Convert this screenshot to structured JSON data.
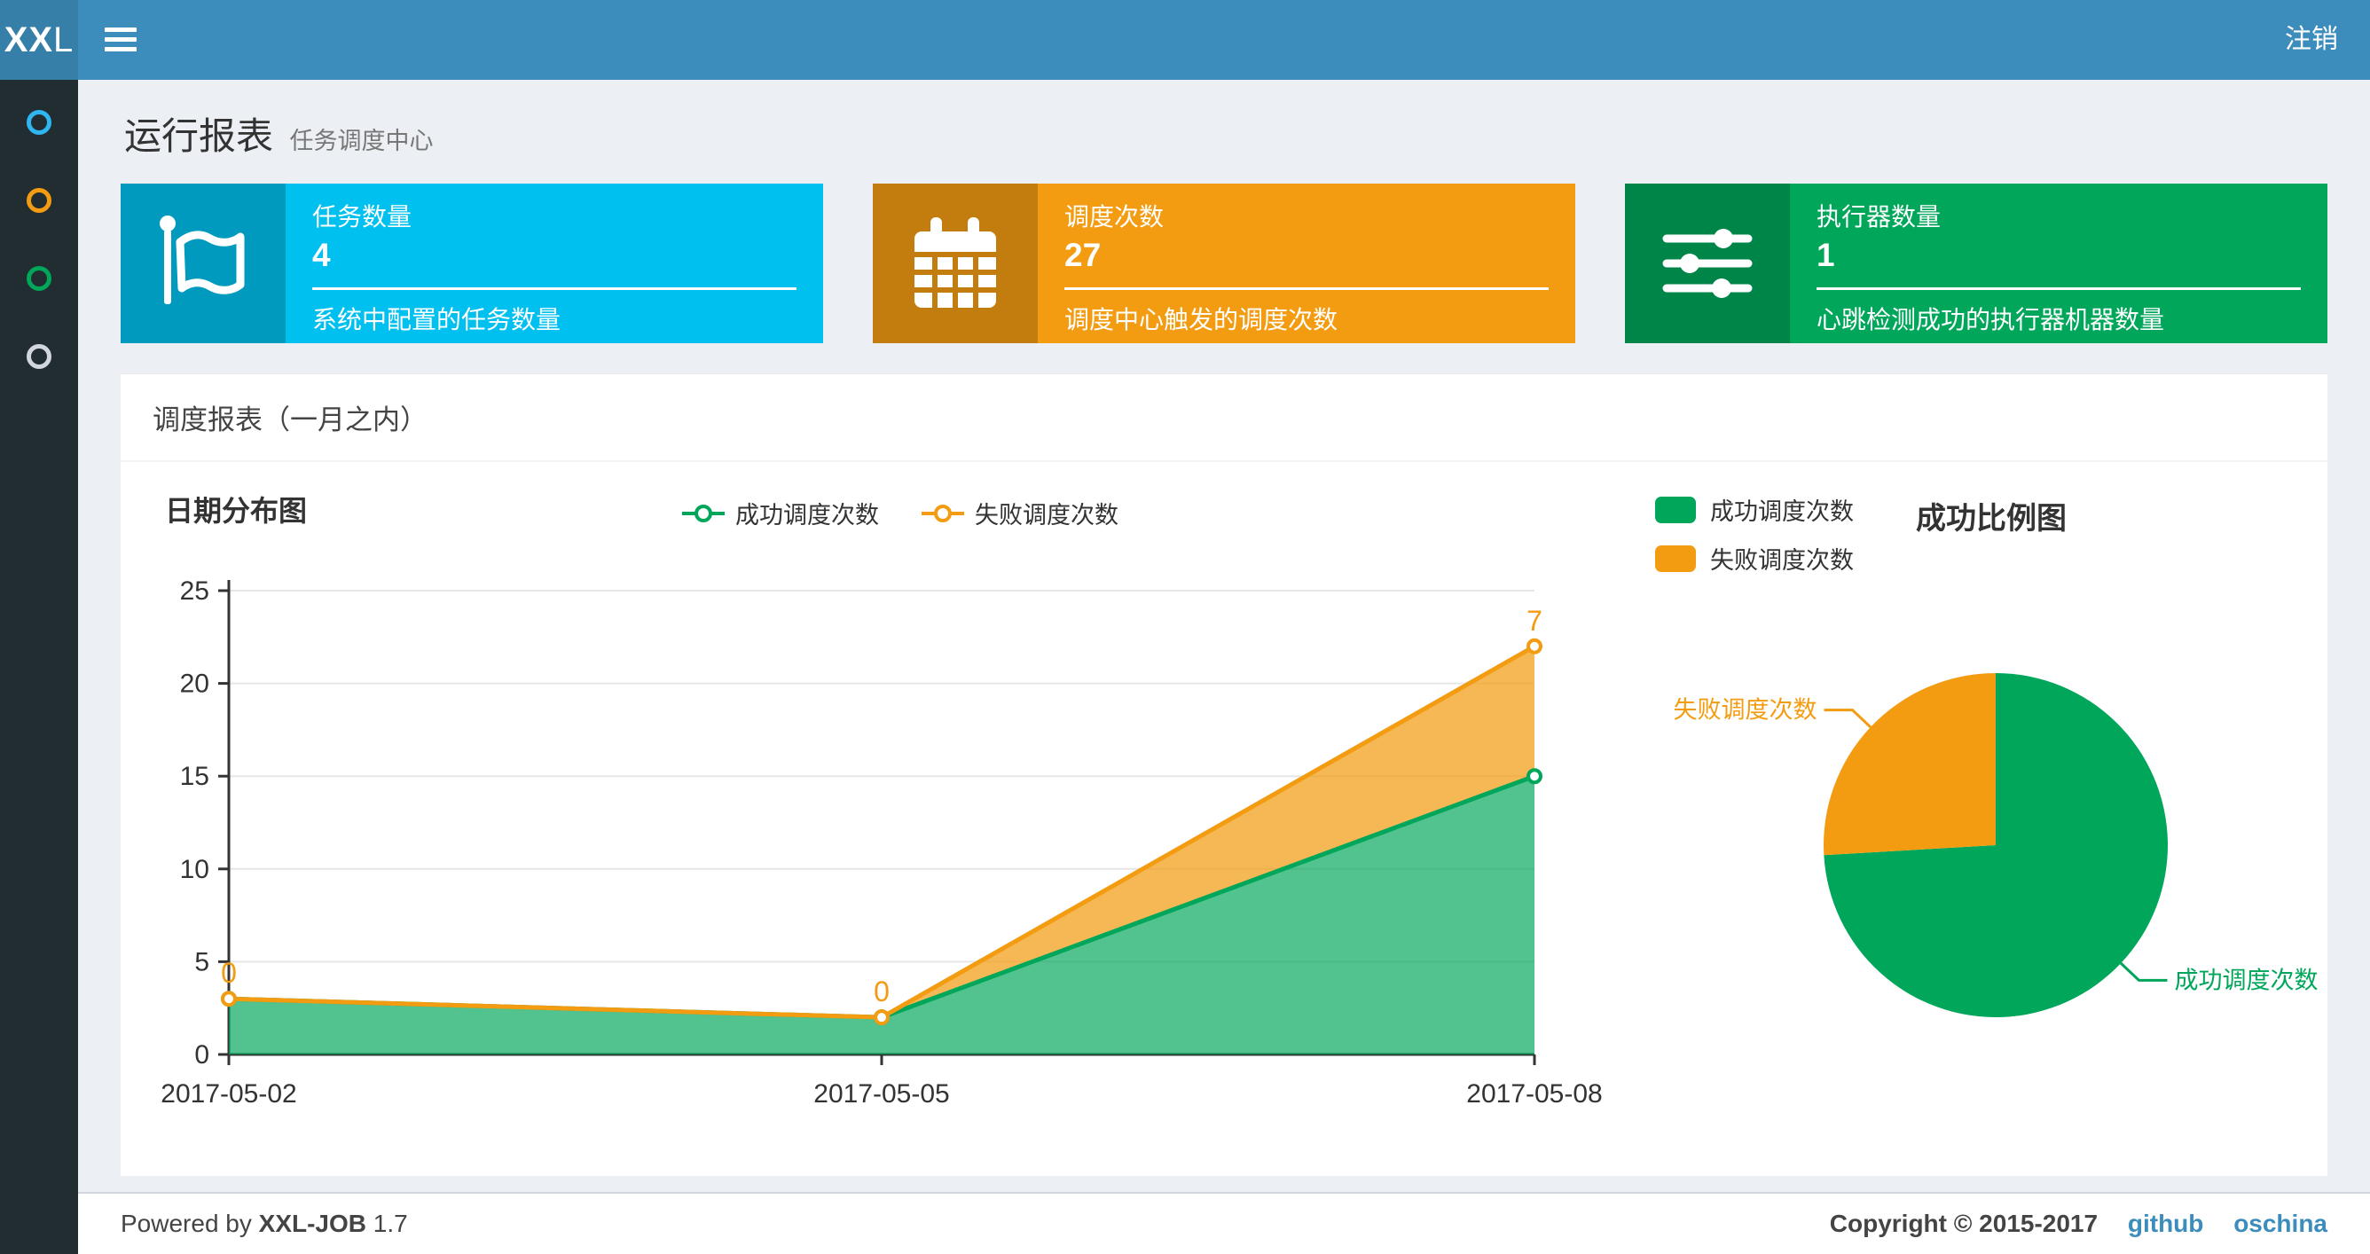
{
  "navbar": {
    "logo_bold": "XX",
    "logo_light": "L",
    "logout_label": "注销"
  },
  "sidebar": {
    "items": [
      {
        "name": "menu-report",
        "color": "#2fb5ef"
      },
      {
        "name": "menu-jobs",
        "color": "#f39c12"
      },
      {
        "name": "menu-log",
        "color": "#00a65a"
      },
      {
        "name": "menu-other",
        "color": "#d2d6de"
      }
    ]
  },
  "page_header": {
    "title": "运行报表",
    "subtitle": "任务调度中心"
  },
  "info_boxes": [
    {
      "label": "任务数量",
      "value": "4",
      "desc": "系统中配置的任务数量",
      "color": "#00c0ef",
      "icon": "flag-icon"
    },
    {
      "label": "调度次数",
      "value": "27",
      "desc": "调度中心触发的调度次数",
      "color": "#f39c12",
      "icon": "calendar-icon"
    },
    {
      "label": "执行器数量",
      "value": "1",
      "desc": "心跳检测成功的执行器机器数量",
      "color": "#00a65a",
      "icon": "sliders-icon"
    }
  ],
  "panel": {
    "title": "调度报表（一月之内）"
  },
  "chart_data": [
    {
      "type": "area",
      "title": "日期分布图",
      "x": [
        "2017-05-02",
        "2017-05-05",
        "2017-05-08"
      ],
      "series": [
        {
          "name": "成功调度次数",
          "color": "#00a65a",
          "values": [
            3,
            2,
            15
          ],
          "show_labels": false
        },
        {
          "name": "失败调度次数",
          "color": "#f39c12",
          "values": [
            0,
            0,
            7
          ],
          "show_labels": true
        }
      ],
      "stacked": true,
      "ylim": [
        0,
        25
      ],
      "y_ticks": [
        0,
        5,
        10,
        15,
        20,
        25
      ],
      "grid": true,
      "legend_position": "top-center"
    },
    {
      "type": "pie",
      "title": "成功比例图",
      "slices": [
        {
          "name": "成功调度次数",
          "value": 20,
          "color": "#00a65a"
        },
        {
          "name": "失败调度次数",
          "value": 7,
          "color": "#f39c12"
        }
      ],
      "legend_position": "top-left",
      "labels": "callout"
    }
  ],
  "footer": {
    "powered_prefix": "Powered by",
    "product": "XXL-JOB",
    "version": "1.7",
    "copyright": "Copyright © 2015-2017",
    "links": [
      {
        "label": "github"
      },
      {
        "label": "oschina"
      }
    ]
  }
}
